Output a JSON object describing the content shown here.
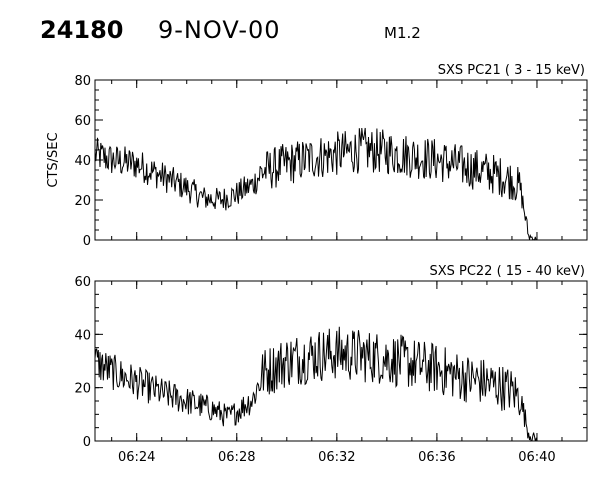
{
  "header": {
    "event_id": "24180",
    "date": "9-NOV-00",
    "flare_class": "M1.2"
  },
  "chart_data": [
    {
      "type": "line",
      "title": "SXS PC21  (  3 - 15 keV)",
      "ylabel": "CTS/SEC",
      "xlabel": "",
      "xlim": [
        "06:22:20",
        "06:42:00"
      ],
      "ylim": [
        0,
        80
      ],
      "yticks": [
        0,
        20,
        40,
        60,
        80
      ],
      "xticks": [
        "06:24",
        "06:28",
        "06:32",
        "06:36",
        "06:40"
      ],
      "series": [
        {
          "x": [
            "06:22:20",
            "06:23:00",
            "06:24:00",
            "06:25:00",
            "06:26:00",
            "06:26:40",
            "06:27:20",
            "06:28:00",
            "06:28:40",
            "06:29:00",
            "06:30:00",
            "06:31:00",
            "06:32:00",
            "06:33:00",
            "06:34:00",
            "06:35:00",
            "06:36:00",
            "06:37:00",
            "06:38:00",
            "06:39:00",
            "06:39:20",
            "06:39:40",
            "06:40:00"
          ],
          "values": [
            43,
            40,
            38,
            32,
            26,
            21,
            20,
            23,
            28,
            34,
            38,
            41,
            43,
            45,
            44,
            42,
            40,
            37,
            34,
            30,
            26,
            2,
            0
          ]
        }
      ]
    },
    {
      "type": "line",
      "title": "SXS PC22  ( 15 - 40 keV)",
      "ylabel": "",
      "xlabel": "",
      "xlim": [
        "06:22:20",
        "06:42:00"
      ],
      "ylim": [
        0,
        60
      ],
      "yticks": [
        0,
        20,
        40,
        60
      ],
      "xticks": [
        "06:24",
        "06:28",
        "06:32",
        "06:36",
        "06:40"
      ],
      "series": [
        {
          "x": [
            "06:22:20",
            "06:23:00",
            "06:24:00",
            "06:25:00",
            "06:26:00",
            "06:27:00",
            "06:27:40",
            "06:28:00",
            "06:28:40",
            "06:29:00",
            "06:30:00",
            "06:31:00",
            "06:32:00",
            "06:33:00",
            "06:34:00",
            "06:35:00",
            "06:36:00",
            "06:37:00",
            "06:38:00",
            "06:39:00",
            "06:39:20",
            "06:39:40",
            "06:40:00"
          ],
          "values": [
            30,
            26,
            22,
            18,
            15,
            12,
            9,
            11,
            16,
            25,
            30,
            32,
            33,
            32,
            31,
            29,
            27,
            24,
            22,
            19,
            16,
            3,
            0
          ]
        }
      ]
    }
  ]
}
